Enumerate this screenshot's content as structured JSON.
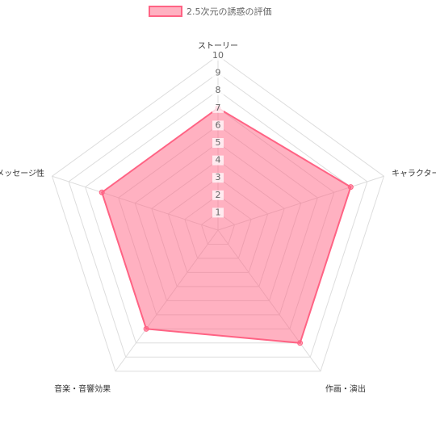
{
  "chart_data": {
    "type": "radar",
    "categories": [
      "ストーリー",
      "キャラクター",
      "作画・演出",
      "音楽・音響効果",
      "メッセージ性"
    ],
    "series": [
      {
        "name": "2.5次元の誘惑の評価",
        "color": "#ff6384",
        "values": [
          7,
          8,
          8,
          7,
          7
        ]
      }
    ],
    "rlim": [
      0,
      10
    ],
    "rticks": [
      1,
      2,
      3,
      4,
      5,
      6,
      7,
      8,
      9,
      10
    ],
    "grid": true,
    "legend": "top"
  }
}
